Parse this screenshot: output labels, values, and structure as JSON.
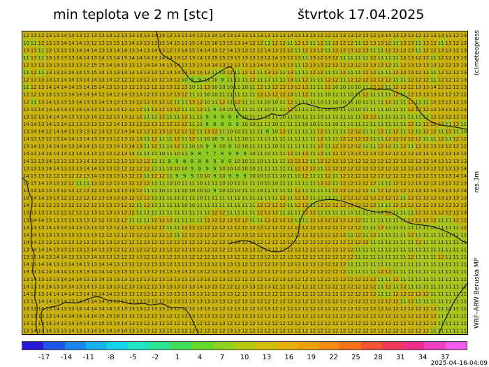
{
  "header": {
    "title": "min teplota ve 2 m [stc]",
    "date": "štvrtok 17.04.2025"
  },
  "side_labels": {
    "copyright": "(c)meteopress",
    "resolution": "res.3m",
    "model": "WRF–ARW Beruska MP"
  },
  "timestamp": "2025-04-16-04:09",
  "colors": {
    "field_warm": "#c9b10e",
    "field_mild": "#a9c51c",
    "field_cool": "#8fcb21",
    "border": "#1a1a1a",
    "value_text": "#222222"
  },
  "colorbar": {
    "ticks": [
      "-17",
      "-14",
      "-11",
      "-8",
      "-5",
      "-2",
      "1",
      "4",
      "7",
      "10",
      "13",
      "16",
      "19",
      "22",
      "25",
      "28",
      "31",
      "34",
      "37"
    ],
    "colors": [
      "#2a1bd8",
      "#1f55e6",
      "#1a86ee",
      "#17b2f0",
      "#15d4ea",
      "#22e3c4",
      "#2ee38f",
      "#40dd5a",
      "#64d92a",
      "#8ed21e",
      "#b4c912",
      "#d2bf0c",
      "#e4b20c",
      "#efa00d",
      "#f58a0f",
      "#f7701a",
      "#f55432",
      "#f03a5a",
      "#ee2e8a",
      "#f03fc2",
      "#f25ae8"
    ]
  },
  "map": {
    "rows": [
      "12 13 12 13 13 14 14 13 12 13 13 13 12 13 13 13 13 14 14 13 13 13 14 13 13 14 14 13 13 13 13 13 13 13 13 14 13 13 13 12 12 12 13 13 13 13 12 13 14 13 13 13 12 12 13 13 13 12 13",
      "10 11 12 13 13 14 14 14 13 12 13 15 15 13 14 13 13 13 15 14 15 13 15 14 15 16 13 15 13 14 12 12 11 12 12 11 12 13 11 12 11 13 12 12 11 12 13 13 12 11 13 13 11 13 12 11 13 12 13",
      "13 13 11 12 13 13 13 14 14 14 13 13 14 14 13 14 13 14 13 12 13 14 15 14 14 13 12 14 13 13 12 12 14 13 12 12 11 12 13 12 11 13 12 13 12 13 11 11 12 13 12 13 11 12 12 13 13 12 13",
      "11 13 11 13 13 13 13 14 14 13 14 15 14 15 14 14 14 13 14 14 13 12 13 14 13 15 15 13 13 13 13 13 12 14 13 12 13 11 13 12 13 12 11 11 11 11 12 11 11 11 12 13 12 12 11 12 12 13 13",
      "12 13 12 13 13 13 13 13 12 15 15 14 14 13 13 12 14 14 14 13 14 13 13 13 14 14 13 12 13 13 13 14 14 13 13 13 11 12 13 13 12 12 12 12 12 12 13 12 12 11 12 13 13 13 13 12 12 13 13",
      "11 12 11 13 13 13 14 14 15 15 14 13 13 14 14 13 13 13 12 14 14 13 14 14 13 11 10 12 11 12 12 11 13 12 11 13 11 11 12 12 11 11 12 11 11 12 12 11 11 12 12 13 12 12 11 12 12 12 13",
      "12 13 13 13 13 14 14 13 14 14 13 14 12 12 12 13 12 13 12 13 12 10 9 9 11 10 9 11 11 11 12 11 11 11 11 13 11 12 11 11 12 12 11 12 12 12 12 12 12 11 11 12 12 12 11 12 12 12 13",
      "11 12 13 14 14 14 14 15 14 15 14 13 13 13 13 13 12 12 12 13 12 12 10 11 13 10 10 10 11 10 11 12 11 12 12 13 12 13 11 11 12 10 10 10 10 11 12 12 11 12 12 12 13 13 14 12 12 12 13",
      "12 12 13 13 13 13 14 14 14 14 12 14 12 14 13 13 12 13 13 12 13 12 11 11 10 10 11 11 11 11 11 12 13 12 12 13 11 12 11 11 10 11 11 10 11 12 11 11 11 12 11 12 13 13 13 12 12 12 12",
      "12 11 13 14 13 13 13 14 13 13 14 13 13 13 13 12 12 13 12 12 11 11 13 12 10 11 12 11 12 11 11 11 10 10 11 12 11 11 11 10 11 10 10 11 10 11 11 11 12 11 11 12 11 11 12 13 13 12 13",
      "12 13 14 13 13 13 13 14 13 13 13 13 14 12 12 12 11 13 12 12 12 11 11 12 11 9 10 10 10 11 11 11 10 11 11 12 11 11 11 11 10 10 11 10 10 11 11 11 10 11 11 12 12 12 12 13 13 12 13",
      "13 12 13 14 14 14 13 13 13 14 12 12 13 13 12 12 11 11 12 11 11 12 11 11 9 9 9 8 8 10 11 11 11 11 10 11 10 11 11 10 11 11 11 11 11 12 12 11 11 11 11 11 11 11 12 12 12 12 12",
      "14 14 13 14 13 14 13 13 13 13 13 12 14 13 13 12 12 13 12 12 12 12 11 11 8 8 8 9 9 10 10 11 11 10 11 11 11 10 10 11 11 10 11 11 11 11 11 11 11 11 11 12 11 12 12 12 11 12 11",
      "13 14 14 12 14 14 13 13 13 12 13 12 12 14 14 12 12 12 13 12 12 12 12 11 13 12 11 10 10 11 11 11 8 10 12 11 11 11 11 12 11 11 11 12 12 11 11 12 11 12 11 12 11 12 12 11 12 11 10",
      "14 13 13 12 13 14 14 13 14 13 13 13 12 13 12 13 11 12 11 11 12 11 12 11 10 10 9 11 11 10 11 11 11 11 11 11 11 11 11 12 11 11 12 12 12 12 11 11 12 12 12 12 12 11 11 12 11 12 12",
      "13 14 13 14 14 14 13 14 14 13 12 13 14 13 14 13 11 12 11 10 12 11 10 10 9 9 10 9 10 10 11 11 11 10 11 11 11 11 11 12 11 12 12 12 12 11 11 12 12 11 12 11 12 12 13 12 12 12 12",
      "14 13 13 14 14 14 13 14 14 13 12 12 12 13 14 11 11 11 10 11 10 11 8 8 7 7 8 9 9 9 10 11 10 11 11 12 11 12 11 12 11 12 12 13 13 12 13 12 12 12 12 12 14 14 13 12 13 13 12",
      "14 13 13 14 13 13 13 13 14 13 13 12 12 13 13 12 12 11 11 9 9 8 8 8 8 9 9 9 10 10 11 10 11 11 11 12 12 12 11 12 12 12 12 12 12 12 12 12 12 12 13 12 12 12 14 13 13 13 13",
      "13 13 13 14 14 13 13 13 14 14 13 13 12 12 12 12 12 11 11 10 10 10 9 9 9 9 10 10 10 10 10 11 11 11 11 11 12 12 12 11 12 12 12 12 12 12 12 12 12 12 12 12 13 13 12 12 13 13 14",
      "14 13 13 12 12 13 12 12 13 14 13 13 13 13 12 12 11 12 12 11 9 9 9 10 10 9 10 9 9 9 10 10 10 11 10 11 10 12 11 11 12 11 12 12 12 12 12 12 12 12 12 13 12 12 13 13 13 14 14",
      "15 15 14 13 13 12 12 11 11 13 12 12 13 13 12 12 12 11 11 10 10 11 11 10 11 11 10 10 11 11 11 10 10 10 11 11 11 11 11 12 12 11 12 12 12 12 12 11 11 12 12 12 13 12 13 13 12 12 13",
      "14 14 14 13 13 12 13 12 12 12 13 14 14 13 13 12 11 11 10 11 11 10 10 10 10 9 10 10 10 11 11 10 11 11 11 11 12 11 11 11 11 12 12 12 12 12 11 12 12 12 12 12 13 12 13 13 13 13 14",
      "13 14 14 13 13 12 12 12 12 12 13 13 13 13 12 12 12 11 11 11 11 11 11 10 11 11 11 11 11 11 11 11 11 11 12 11 12 12 11 11 11 11 12 12 12 12 12 12 12 12 11 12 12 12 12 13 13 13 13",
      "14 13 13 12 13 13 12 12 12 12 13 13 13 12 12 11 12 11 11 11 11 10 10 11 11 11 11 11 11 11 11 12 12 12 12 11 12 12 11 12 12 12 12 12 12 12 12 11 11 12 12 12 12 12 13 12 12 13 13",
      "13 13 13 13 12 12 12 12 12 13 12 13 13 12 12 11 11 11 11 11 11 11 11 11 11 12 12 11 11 11 11 12 12 12 11 11 11 12 12 11 11 11 11 11 11 11 11 11 12 11 11 11 12 12 13 12 12 12 13",
      "13 14 14 13 13 13 13 13 13 12 12 12 12 12 11 11 11 12 12 12 11 11 11 11 12 12 12 12 12 12 11 11 12 12 12 12 11 11 12 12 12 12 12 12 12 11 11 11 11 11 11 12 12 12 12 11 11 12 12",
      "13 13 13 14 13 13 14 13 13 13 12 12 12 13 12 12 13 12 12 11 11 12 12 12 12 12 12 12 12 12 12 12 12 12 12 12 12 12 12 12 12 12 12 12 12 11 11 12 11 11 11 11 11 11 11 11 11 11 12",
      "14 14 13 13 13 13 13 13 13 13 12 12 12 12 12 12 12 12 12 12 11 12 12 12 12 12 12 12 12 13 12 12 12 12 12 12 12 12 12 12 12 12 12 11 12 11 12 11 11 11 11 12 11 11 11 11 11 11 11",
      "14 14 13 13 13 13 13 13 13 13 13 13 13 12 12 12 13 12 12 12 12 12 12 12 12 12 12 13 13 12 12 12 12 12 12 12 12 12 12 12 12 12 12 12 12 12 11 11 11 11 11 11 12 11 11 11 11 11 11",
      "13 14 14 14 13 13 13 13 13 14 13 13 12 12 12 12 12 12 13 12 12 13 13 12 12 12 12 12 13 13 13 12 12 12 12 12 12 12 12 12 12 12 12 12 11 11 11 11 11 11 11 11 11 11 11 11 11 11 11",
      "13 13 14 13 14 14 13 13 13 14 13 13 12 12 12 13 12 13 13 12 13 13 12 12 12 13 13 13 12 12 12 13 12 13 12 12 12 12 12 12 12 12 12 12 11 11 11 11 11 11 11 12 11 11 11 12 11 11 11",
      "14 13 14 14 13 13 14 14 13 13 14 14 13 13 12 12 12 13 13 12 13 13 13 13 13 12 13 13 13 12 12 12 12 12 12 12 12 12 12 12 12 12 12 11 11 11 11 11 11 11 11 11 11 11 11 11 11 11 11",
      "13 13 14 14 14 14 13 13 13 14 14 14 13 13 12 12 13 12 13 13 13 13 13 13 12 12 13 13 13 12 12 12 12 12 12 12 12 12 12 12 12 12 12 11 11 11 11 12 12 11 11 11 11 11 11 11 11 11 11",
      "13 14 13 13 13 14 14 14 13 13 14 13 13 13 13 12 13 12 13 13 13 13 13 13 13 12 13 12 12 12 12 12 13 12 13 12 12 12 12 12 12 12 12 12 12 12 12 11 11 12 11 11 11 11 11 11 11 11 11",
      "14 13 14 14 13 14 14 13 14 13 13 13 13 12 13 13 12 12 13 13 13 13 13 14 13 13 12 12 12 13 13 12 13 12 12 13 12 12 12 12 12 12 12 12 12 12 12 11 12 11 12 11 11 11 11 11 11 11 11",
      "14 13 13 14 14 14 14 13 14 13 14 14 13 13 13 13 13 12 13 13 13 13 13 13 12 13 13 13 12 12 13 13 13 12 12 12 12 12 12 12 12 12 12 12 12 12 12 11 11 12 12 12 12 12 11 11 11 11 11",
      "13 13 14 14 13 14 13 14 13 14 14 13 13 13 13 13 13 13 12 12 13 13 13 13 13 13 13 12 12 12 12 12 12 12 12 12 12 12 12 12 12 12 12 12 12 12 12 12 12 12 11 12 11 11 11 11 11 11 11",
      "13 13 14 13 14 13 13 14 14 14 14 14 13 13 13 13 12 13 13 13 12 12 12 13 13 13 12 12 13 12 12 12 13 12 12 12 12 12 12 12 12 12 12 12 12 12 12 12 12 12 12 12 12 12 12 11 10 11 11",
      "13 13 13 13 14 14 14 14 14 14 15 15 16 13 13 13 12 12 13 12 12 13 13 13 13 13 12 12 12 13 13 12 12 12 12 12 12 12 12 12 12 12 12 12 12 12 12 12 12 12 12 12 12 12 12 11 11 11 11",
      "13 13 13 14 14 13 14 14 14 14 15 15 14 14 13 13 12 13 12 12 12 12 12 12 12 13 13 12 12 12 12 12 12 12 12 12 12 12 12 12 12 12 12 12 12 12 12 12 12 12 12 12 12 12 12 11 11 11 11",
      "13 14 14 14 13 13 14 13 13 14 14 14 14 14 13 13 13 12 13 12 12 12 12 12 12 12 12 13 13 12 12 12 12 12 12 12 12 12 12 12 12 12 12 12 12 12 12 12 12 12 12 12 12 12 11 11 11 11 11"
    ]
  }
}
